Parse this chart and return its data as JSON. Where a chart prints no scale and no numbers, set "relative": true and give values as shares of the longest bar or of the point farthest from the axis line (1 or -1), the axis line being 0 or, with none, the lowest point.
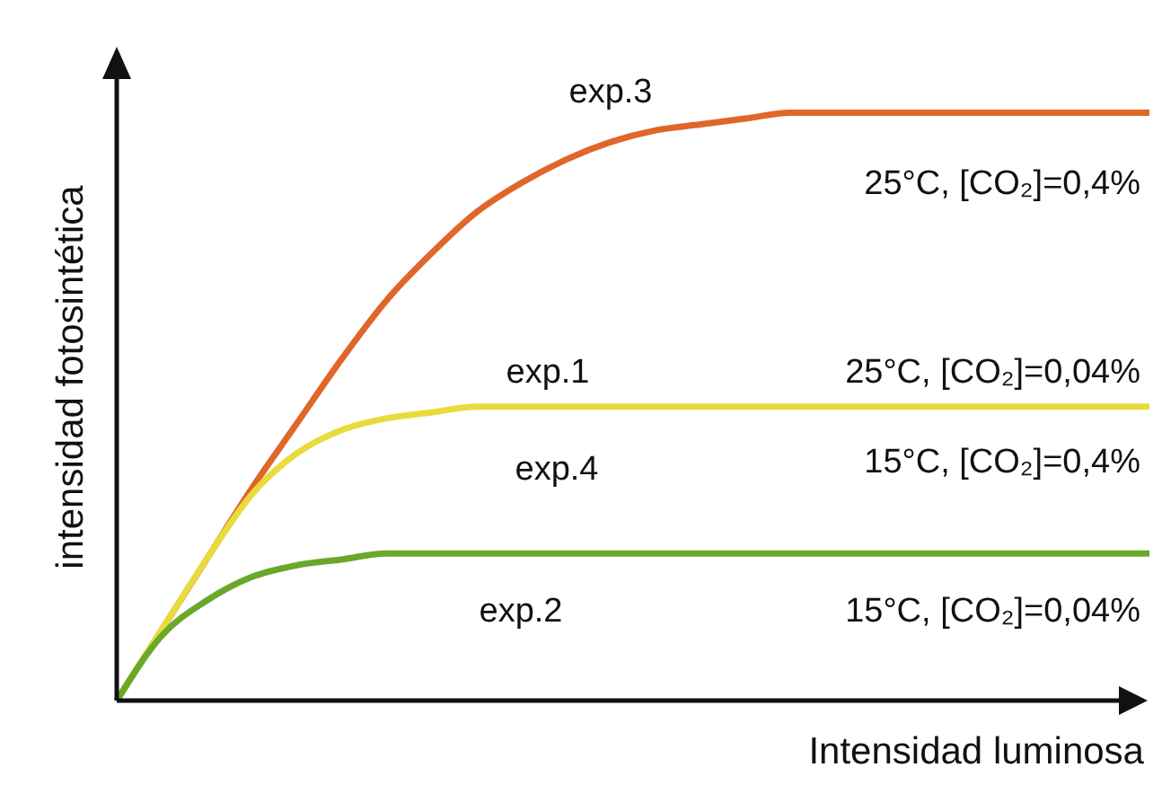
{
  "chart_data": {
    "type": "line",
    "relative": true,
    "xlabel": "Intensidad luminosa",
    "ylabel": "intensidad fotosintética",
    "categories": [
      null,
      null,
      null,
      null,
      null,
      null,
      null,
      null,
      null,
      null,
      null,
      null,
      null,
      null,
      null,
      null,
      null,
      null,
      null,
      null,
      null,
      null,
      null,
      null
    ],
    "marker": "none",
    "line_style": "solid",
    "series": [
      {
        "color": "#e0662a",
        "values": [
          0,
          0.12,
          0.24,
          0.36,
          0.47,
          0.58,
          0.68,
          0.76,
          0.83,
          0.88,
          0.92,
          0.95,
          0.97,
          0.98,
          0.99,
          1,
          1,
          1,
          1,
          1,
          1,
          1,
          1,
          1
        ]
      },
      {
        "color": "#e8dc3c",
        "values": [
          0,
          0.12,
          0.24,
          0.35,
          0.42,
          0.46,
          0.48,
          0.49,
          0.5,
          0.5,
          0.5,
          0.5,
          0.5,
          0.5,
          0.5,
          0.5,
          0.5,
          0.5,
          0.5,
          0.5,
          0.5,
          0.5,
          0.5,
          0.5
        ]
      },
      {
        "color": "#6aa82a",
        "values": [
          0,
          0.11,
          0.17,
          0.21,
          0.23,
          0.24,
          0.25,
          0.25,
          0.25,
          0.25,
          0.25,
          0.25,
          0.25,
          0.25,
          0.25,
          0.25,
          0.25,
          0.25,
          0.25,
          0.25,
          0.25,
          0.25,
          0.25,
          0.25
        ]
      }
    ],
    "annotations": [
      "exp.3",
      "25°C, [CO₂]=0,4%",
      "exp.1",
      "25°C, [CO₂]=0,04%",
      "exp.4",
      "15°C, [CO₂]=0,4%",
      "exp.2",
      "15°C, [CO₂]=0,04%"
    ]
  }
}
